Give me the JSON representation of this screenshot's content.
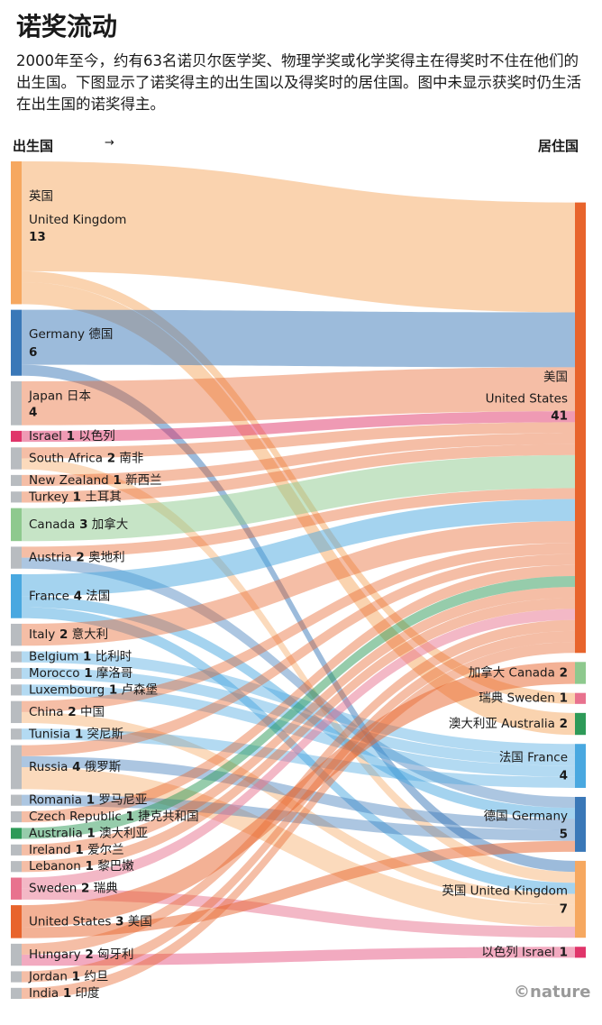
{
  "title": "诺奖流动",
  "subtitle": "2000年至今，约有63名诺贝尔医学奖、物理学奖或化学奖得主在得奖时不住在他们的出生国。下图显示了诺奖得主的出生国以及得奖时的居住国。图中未显示获奖时仍生活在出生国的诺奖得主。",
  "axis": {
    "left_label": "出生国",
    "arrow": "→",
    "right_label": "居住国"
  },
  "credit": "©nature",
  "chart_data": {
    "type": "sankey",
    "colors": {
      "United States": "#e8642c",
      "United Kingdom": "#f6a860",
      "Germany": "#3a78b8",
      "Canada": "#8ec98e",
      "France": "#49a8e0",
      "Israel": "#e0356a",
      "Australia": "#2e9a58",
      "Sweden": "#e8728e",
      "grey": "#b8bcc0"
    },
    "sources": [
      {
        "id": "United Kingdom",
        "en": "United Kingdom",
        "zh": "英国",
        "value": 13,
        "color": "United Kingdom"
      },
      {
        "id": "Germany",
        "en": "Germany",
        "zh": "德国",
        "value": 6,
        "color": "Germany"
      },
      {
        "id": "Japan",
        "en": "Japan",
        "zh": "日本",
        "value": 4,
        "color": "grey"
      },
      {
        "id": "Israel",
        "en": "Israel",
        "zh": "以色列",
        "value": 1,
        "color": "Israel"
      },
      {
        "id": "South Africa",
        "en": "South Africa",
        "zh": "南非",
        "value": 2,
        "color": "grey"
      },
      {
        "id": "New Zealand",
        "en": "New Zealand",
        "zh": "新西兰",
        "value": 1,
        "color": "grey"
      },
      {
        "id": "Turkey",
        "en": "Turkey",
        "zh": "土耳其",
        "value": 1,
        "color": "grey"
      },
      {
        "id": "Canada",
        "en": "Canada",
        "zh": "加拿大",
        "value": 3,
        "color": "Canada"
      },
      {
        "id": "Austria",
        "en": "Austria",
        "zh": "奥地利",
        "value": 2,
        "color": "grey"
      },
      {
        "id": "France",
        "en": "France",
        "zh": "法国",
        "value": 4,
        "color": "France"
      },
      {
        "id": "Italy",
        "en": "Italy",
        "zh": "意大利",
        "value": 2,
        "color": "grey"
      },
      {
        "id": "Belgium",
        "en": "Belgium",
        "zh": "比利时",
        "value": 1,
        "color": "grey"
      },
      {
        "id": "Morocco",
        "en": "Morocco",
        "zh": "摩洛哥",
        "value": 1,
        "color": "grey"
      },
      {
        "id": "Luxembourg",
        "en": "Luxembourg",
        "zh": "卢森堡",
        "value": 1,
        "color": "grey"
      },
      {
        "id": "China",
        "en": "China",
        "zh": "中国",
        "value": 2,
        "color": "grey"
      },
      {
        "id": "Tunisia",
        "en": "Tunisia",
        "zh": "突尼斯",
        "value": 1,
        "color": "grey"
      },
      {
        "id": "Russia",
        "en": "Russia",
        "zh": "俄罗斯",
        "value": 4,
        "color": "grey"
      },
      {
        "id": "Romania",
        "en": "Romania",
        "zh": "罗马尼亚",
        "value": 1,
        "color": "grey"
      },
      {
        "id": "Czech Republic",
        "en": "Czech Republic",
        "zh": "捷克共和国",
        "value": 1,
        "color": "grey"
      },
      {
        "id": "Australia",
        "en": "Australia",
        "zh": "澳大利亚",
        "value": 1,
        "color": "Australia"
      },
      {
        "id": "Ireland",
        "en": "Ireland",
        "zh": "爱尔兰",
        "value": 1,
        "color": "grey"
      },
      {
        "id": "Lebanon",
        "en": "Lebanon",
        "zh": "黎巴嫩",
        "value": 1,
        "color": "grey"
      },
      {
        "id": "Sweden",
        "en": "Sweden",
        "zh": "瑞典",
        "value": 2,
        "color": "Sweden"
      },
      {
        "id": "United States",
        "en": "United States",
        "zh": "美国",
        "value": 3,
        "color": "United States"
      },
      {
        "id": "Hungary",
        "en": "Hungary",
        "zh": "匈牙利",
        "value": 2,
        "color": "grey"
      },
      {
        "id": "Jordan",
        "en": "Jordan",
        "zh": "约旦",
        "value": 1,
        "color": "grey"
      },
      {
        "id": "India",
        "en": "India",
        "zh": "印度",
        "value": 1,
        "color": "grey"
      }
    ],
    "targets": [
      {
        "id": "United States",
        "en": "United States",
        "zh": "美国",
        "value": 41,
        "color": "United States"
      },
      {
        "id": "Canada",
        "en": "Canada",
        "zh": "加拿大",
        "value": 2,
        "color": "Canada"
      },
      {
        "id": "Sweden",
        "en": "Sweden",
        "zh": "瑞典",
        "value": 1,
        "color": "Sweden"
      },
      {
        "id": "Australia",
        "en": "Australia",
        "zh": "澳大利亚",
        "value": 2,
        "color": "Australia"
      },
      {
        "id": "France",
        "en": "France",
        "zh": "法国",
        "value": 4,
        "color": "France"
      },
      {
        "id": "Germany",
        "en": "Germany",
        "zh": "德国",
        "value": 5,
        "color": "Germany"
      },
      {
        "id": "United Kingdom",
        "en": "United Kingdom",
        "zh": "英国",
        "value": 7,
        "color": "United Kingdom"
      },
      {
        "id": "Israel",
        "en": "Israel",
        "zh": "以色列",
        "value": 1,
        "color": "Israel"
      }
    ],
    "flows": [
      {
        "from": "United Kingdom",
        "to": "United States",
        "value": 10
      },
      {
        "from": "United Kingdom",
        "to": "Sweden",
        "value": 1
      },
      {
        "from": "United Kingdom",
        "to": "Australia",
        "value": 2
      },
      {
        "from": "Germany",
        "to": "United States",
        "value": 5
      },
      {
        "from": "Germany",
        "to": "United Kingdom",
        "value": 1
      },
      {
        "from": "Japan",
        "to": "United States",
        "value": 4
      },
      {
        "from": "Israel",
        "to": "United States",
        "value": 1
      },
      {
        "from": "South Africa",
        "to": "United States",
        "value": 1
      },
      {
        "from": "South Africa",
        "to": "United Kingdom",
        "value": 1
      },
      {
        "from": "New Zealand",
        "to": "United States",
        "value": 1
      },
      {
        "from": "Turkey",
        "to": "United States",
        "value": 1
      },
      {
        "from": "Canada",
        "to": "United States",
        "value": 3
      },
      {
        "from": "Austria",
        "to": "United States",
        "value": 1
      },
      {
        "from": "Austria",
        "to": "Germany",
        "value": 1
      },
      {
        "from": "France",
        "to": "United States",
        "value": 2
      },
      {
        "from": "France",
        "to": "Germany",
        "value": 1
      },
      {
        "from": "France",
        "to": "United Kingdom",
        "value": 1
      },
      {
        "from": "Italy",
        "to": "United States",
        "value": 2
      },
      {
        "from": "Belgium",
        "to": "France",
        "value": 1
      },
      {
        "from": "Morocco",
        "to": "France",
        "value": 1
      },
      {
        "from": "Luxembourg",
        "to": "France",
        "value": 1
      },
      {
        "from": "China",
        "to": "United States",
        "value": 1
      },
      {
        "from": "China",
        "to": "United Kingdom",
        "value": 1
      },
      {
        "from": "Tunisia",
        "to": "France",
        "value": 1
      },
      {
        "from": "Russia",
        "to": "United States",
        "value": 1
      },
      {
        "from": "Russia",
        "to": "United Kingdom",
        "value": 2
      },
      {
        "from": "Russia",
        "to": "Germany",
        "value": 1
      },
      {
        "from": "Romania",
        "to": "Germany",
        "value": 1
      },
      {
        "from": "Czech Republic",
        "to": "United States",
        "value": 1
      },
      {
        "from": "Australia",
        "to": "United States",
        "value": 1
      },
      {
        "from": "Ireland",
        "to": "United States",
        "value": 1
      },
      {
        "from": "Lebanon",
        "to": "United States",
        "value": 1
      },
      {
        "from": "Sweden",
        "to": "United States",
        "value": 1
      },
      {
        "from": "Sweden",
        "to": "United Kingdom",
        "value": 1
      },
      {
        "from": "United States",
        "to": "Canada",
        "value": 2
      },
      {
        "from": "United States",
        "to": "Germany",
        "value": 1
      },
      {
        "from": "Hungary",
        "to": "United States",
        "value": 1
      },
      {
        "from": "Hungary",
        "to": "Israel",
        "value": 1
      },
      {
        "from": "Jordan",
        "to": "United States",
        "value": 1
      },
      {
        "from": "India",
        "to": "United States",
        "value": 1
      }
    ]
  }
}
